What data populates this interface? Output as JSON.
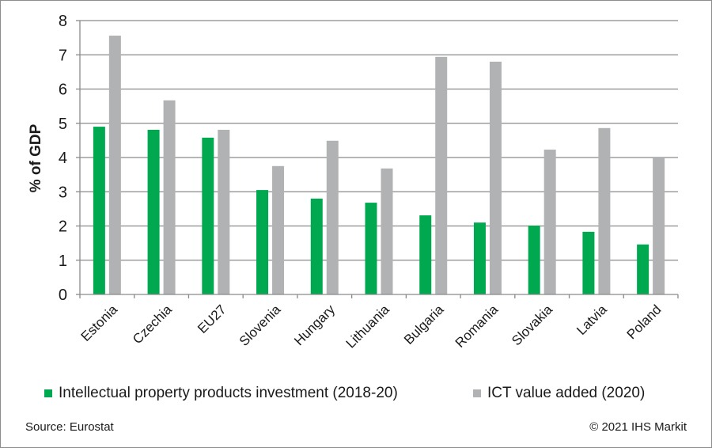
{
  "chart_data": {
    "type": "bar",
    "title": "",
    "xlabel": "",
    "ylabel": "% of GDP",
    "ylim": [
      0,
      8
    ],
    "yticks": [
      "0",
      "1",
      "2",
      "3",
      "4",
      "5",
      "6",
      "7",
      "8"
    ],
    "grid": true,
    "categories": [
      "Estonia",
      "Czechia",
      "EU27",
      "Slovenia",
      "Hungary",
      "Lithuania",
      "Bulgaria",
      "Romania",
      "Slovakia",
      "Latvia",
      "Poland"
    ],
    "series": [
      {
        "name": "Intellectual property products investment (2018-20)",
        "color": "#00a94f",
        "values": [
          4.9,
          4.81,
          4.58,
          3.05,
          2.8,
          2.68,
          2.31,
          2.1,
          2.01,
          1.83,
          1.46
        ]
      },
      {
        "name": "ICT value added (2020)",
        "color": "#b1b2b4",
        "values": [
          7.56,
          5.67,
          4.81,
          3.75,
          4.49,
          3.68,
          6.94,
          6.8,
          4.23,
          4.86,
          4.0
        ]
      }
    ],
    "legend_position": "bottom"
  },
  "footer": {
    "source": "Source: Eurostat",
    "copyright": "© 2021 IHS Markit"
  }
}
